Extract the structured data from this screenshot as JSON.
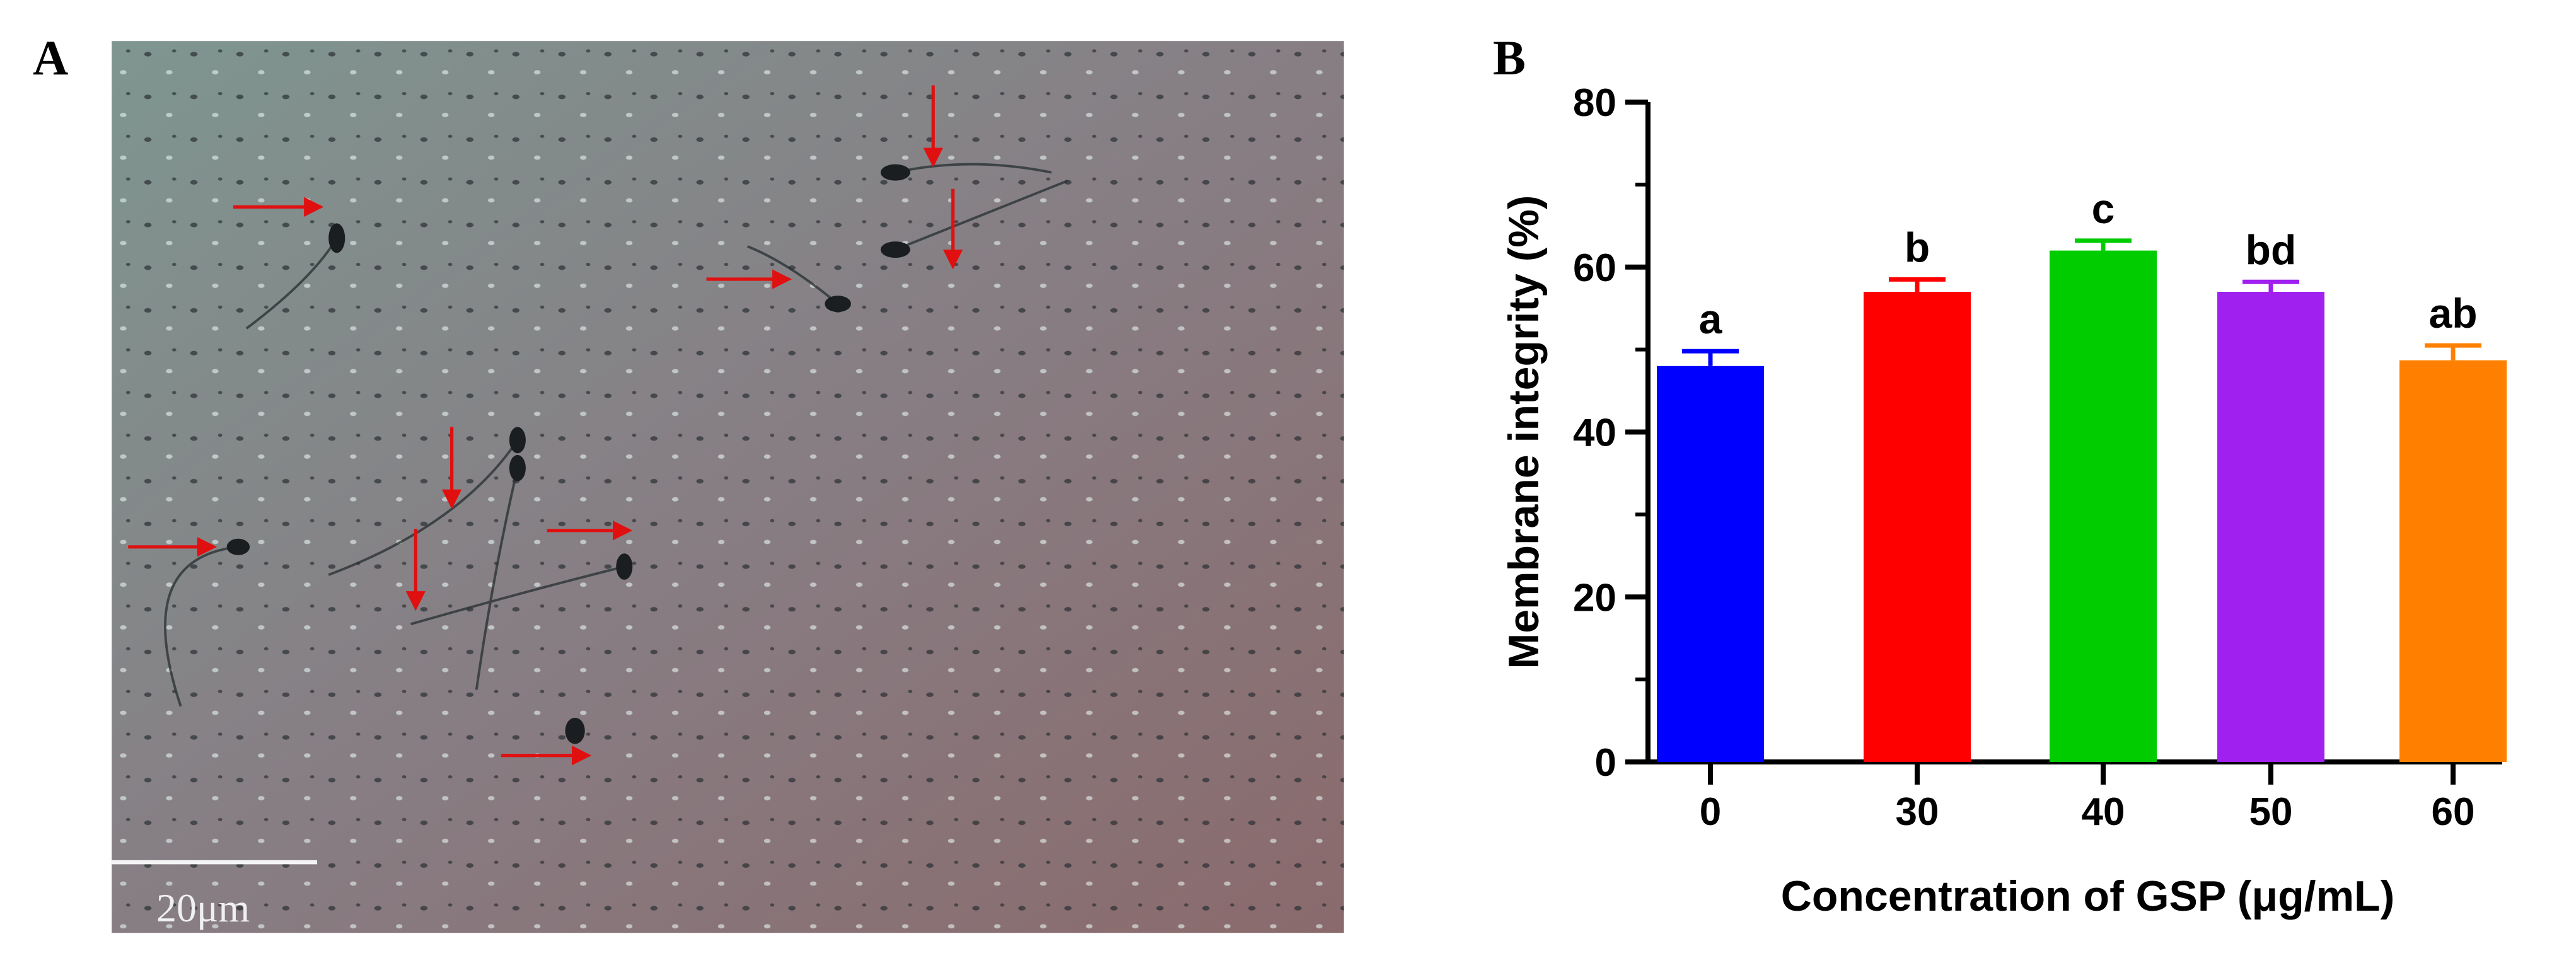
{
  "panel_a": {
    "label": "A",
    "scale_bar_label": "20μm"
  },
  "chart_data": {
    "type": "bar",
    "panel_label": "B",
    "xlabel": "Concentration of GSP (μg/mL)",
    "ylabel": "Membrane integrity (%)",
    "categories": [
      "0",
      "30",
      "40",
      "50",
      "60"
    ],
    "values": [
      48,
      57,
      62,
      57,
      48.7
    ],
    "errors": [
      1.8,
      1.5,
      1.2,
      1.2,
      1.8
    ],
    "letters": [
      "a",
      "b",
      "c",
      "bd",
      "ab"
    ],
    "colors": [
      "#0000ff",
      "#ff0000",
      "#00cc00",
      "#a020f0",
      "#ff8000"
    ],
    "ylim": [
      0,
      80
    ],
    "yticks": [
      0,
      20,
      40,
      60,
      80
    ]
  }
}
